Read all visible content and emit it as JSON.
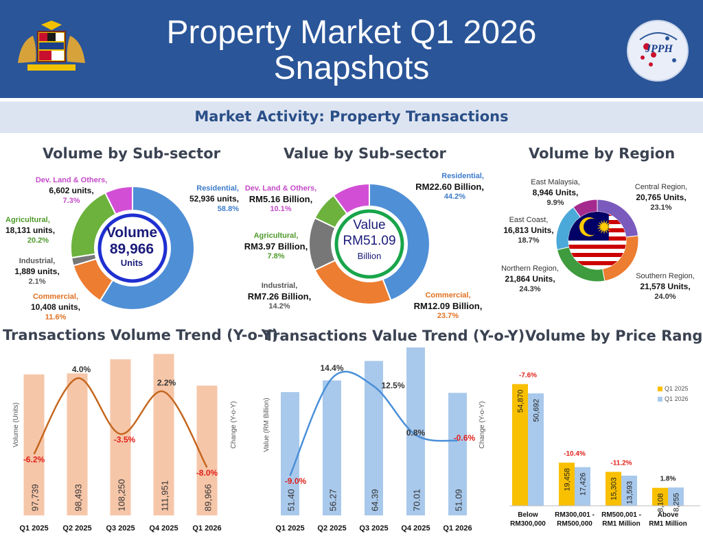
{
  "header": {
    "title_line1": "Property Market Q1 2026",
    "title_line2": "Snapshots"
  },
  "subheader": {
    "title": "Market Activity: Property Transactions"
  },
  "colors": {
    "residential": "#4f8fd6",
    "commercial": "#ec7d31",
    "industrial": "#777777",
    "agricultural": "#6cb23d",
    "dev_land": "#d24fd5",
    "bar_orange": "#f6c6a9",
    "line_orange": "#c5661d",
    "bar_blue": "#a9c9ec",
    "line_blue": "#4a8fd8",
    "q1_2025": "#f8c000",
    "q1_2026": "#a9c9ec"
  },
  "chart_data": [
    {
      "type": "pie",
      "title": "Volume by Sub-sector",
      "center_label": "Volume",
      "center_value": "89,966",
      "center_unit": "Units",
      "slices": [
        {
          "name": "Residential,",
          "value_text": "52,936 units,",
          "percent_text": "58.8%",
          "value": 58.8
        },
        {
          "name": "Commercial,",
          "value_text": "10,408 units,",
          "percent_text": "11.6%",
          "value": 11.6
        },
        {
          "name": "Industrial,",
          "value_text": "1,889 units,",
          "percent_text": "2.1%",
          "value": 2.1
        },
        {
          "name": "Agricultural,",
          "value_text": "18,131 units,",
          "percent_text": "20.2%",
          "value": 20.2
        },
        {
          "name": "Dev. Land & Others,",
          "value_text": "6,602 units,",
          "percent_text": "7.3%",
          "value": 7.3
        }
      ]
    },
    {
      "type": "pie",
      "title": "Value by Sub-sector",
      "center_label": "Value",
      "center_value": "RM51.09",
      "center_unit": "Billion",
      "slices": [
        {
          "name": "Residential,",
          "value_text": "RM22.60 Billion,",
          "percent_text": "44.2%",
          "value": 44.2
        },
        {
          "name": "Commercial,",
          "value_text": "RM12.09 Billion,",
          "percent_text": "23.7%",
          "value": 23.7
        },
        {
          "name": "Industrial,",
          "value_text": "RM7.26 Billion,",
          "percent_text": "14.2%",
          "value": 14.2
        },
        {
          "name": "Agricultural,",
          "value_text": "RM3.97 Billion,",
          "percent_text": "7.8%",
          "value": 7.8
        },
        {
          "name": "Dev. Land & Others,",
          "value_text": "RM5.16 Billion,",
          "percent_text": "10.1%",
          "value": 10.1
        }
      ]
    },
    {
      "type": "pie",
      "title": "Volume by Region",
      "slices": [
        {
          "name": "Central Region,",
          "value_text": "20,765 Units,",
          "percent_text": "23.1%",
          "value": 23.1
        },
        {
          "name": "Southern Region,",
          "value_text": "21,578 Units,",
          "percent_text": "24.0%",
          "value": 24.0
        },
        {
          "name": "Northern Region,",
          "value_text": "21,864 Units,",
          "percent_text": "24.3%",
          "value": 24.3
        },
        {
          "name": "East Coast,",
          "value_text": "16,813 Units,",
          "percent_text": "18.7%",
          "value": 18.7
        },
        {
          "name": "East Malaysia,",
          "value_text": "8,946 Units,",
          "percent_text": "9.9%",
          "value": 9.9
        }
      ]
    },
    {
      "type": "bar",
      "title": "Transactions Volume Trend (Y-o-Y)",
      "ylabel": "Volume (Units)",
      "y2label": "Change (Y-o-Y)",
      "categories": [
        "Q1 2025",
        "Q2 2025",
        "Q3 2025",
        "Q4 2025",
        "Q1 2026"
      ],
      "values": [
        97739,
        98493,
        108250,
        111951,
        89966
      ],
      "value_labels": [
        "97,739",
        "98,493",
        "108,250",
        "111,951",
        "89,966"
      ],
      "ylim": [
        0,
        115000
      ],
      "change": [
        -6.2,
        4.0,
        -3.5,
        2.2,
        -8.0
      ],
      "change_labels": [
        "-6.2%",
        "4.0%",
        "-3.5%",
        "2.2%",
        "-8.0%"
      ]
    },
    {
      "type": "bar",
      "title": "Transactions Value Trend (Y-o-Y)",
      "ylabel": "Value (RM Billion)",
      "y2label": "Change (Y-o-Y)",
      "categories": [
        "Q1 2025",
        "Q2 2025",
        "Q3 2025",
        "Q4 2025",
        "Q1 2026"
      ],
      "values": [
        51.4,
        56.27,
        64.39,
        70.01,
        51.09
      ],
      "value_labels": [
        "51.40",
        "56.27",
        "64.39",
        "70.01",
        "51.09"
      ],
      "ylim": [
        0,
        70
      ],
      "change": [
        -9.0,
        14.4,
        12.5,
        0.8,
        -0.6
      ],
      "change_labels": [
        "-9.0%",
        "14.4%",
        "12.5%",
        "0.8%",
        "-0.6%"
      ]
    },
    {
      "type": "bar",
      "title": "Volume by Price Range",
      "categories": [
        "Below RM300,000",
        "RM300,001 - RM500,000",
        "RM500,001 - RM1 Million",
        "Above RM1 Million"
      ],
      "category_lines": [
        [
          "Below",
          "RM300,000"
        ],
        [
          "RM300,001 -",
          "RM500,000"
        ],
        [
          "RM500,001 -",
          "RM1 Million"
        ],
        [
          "Above",
          "RM1 Million"
        ]
      ],
      "series": [
        {
          "name": "Q1 2025",
          "values": [
            54870,
            19458,
            15303,
            8108
          ],
          "labels": [
            "54,870",
            "19,458",
            "15,303",
            "8,108"
          ]
        },
        {
          "name": "Q1 2026",
          "values": [
            50692,
            17426,
            13593,
            8255
          ],
          "labels": [
            "50,692",
            "17,426",
            "13,593",
            "8,255"
          ]
        }
      ],
      "ylim": [
        0,
        55000
      ],
      "change_labels": [
        "-7.6%",
        "-10.4%",
        "-11.2%",
        "1.8%"
      ],
      "legend": "top-right"
    }
  ]
}
